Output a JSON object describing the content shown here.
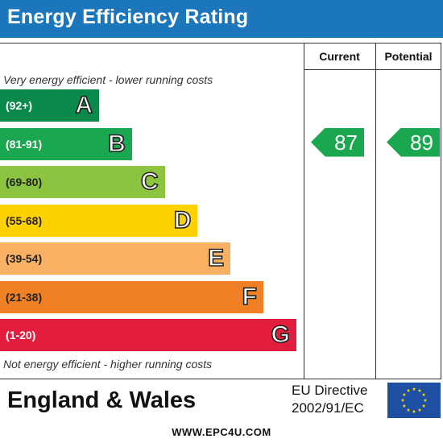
{
  "header": {
    "title": "Energy Efficiency Rating"
  },
  "columns": {
    "current": "Current",
    "potential": "Potential"
  },
  "captions": {
    "top": "Very energy efficient - lower running costs",
    "bottom": "Not energy efficient - higher running costs"
  },
  "footer": {
    "region": "England & Wales",
    "directive_line1": "EU Directive",
    "directive_line2": "2002/91/EC",
    "website": "WWW.EPC4U.COM"
  },
  "flag": {
    "name": "eu-flag-icon",
    "background": "#1e4fa3",
    "stars": "#ffd700"
  },
  "chart_data": {
    "type": "bar",
    "categories": [
      "A",
      "B",
      "C",
      "D",
      "E",
      "F",
      "G"
    ],
    "ranges": [
      "(92+)",
      "(81-91)",
      "(69-80)",
      "(55-68)",
      "(39-54)",
      "(21-38)",
      "(1-20)"
    ],
    "band_min": [
      92,
      81,
      69,
      55,
      39,
      21,
      1
    ],
    "band_max": [
      100,
      91,
      80,
      68,
      54,
      38,
      20
    ],
    "colors": [
      "#0a8a4a",
      "#1aa74f",
      "#8dc43f",
      "#fed100",
      "#f8b063",
      "#ef8023",
      "#e31d3d"
    ],
    "range_text_colors": [
      "#ffffff",
      "#ffffff",
      "#222222",
      "#222222",
      "#222222",
      "#222222",
      "#ffffff"
    ],
    "current": {
      "value": 87,
      "band": "B"
    },
    "potential": {
      "value": 89,
      "band": "B"
    }
  }
}
